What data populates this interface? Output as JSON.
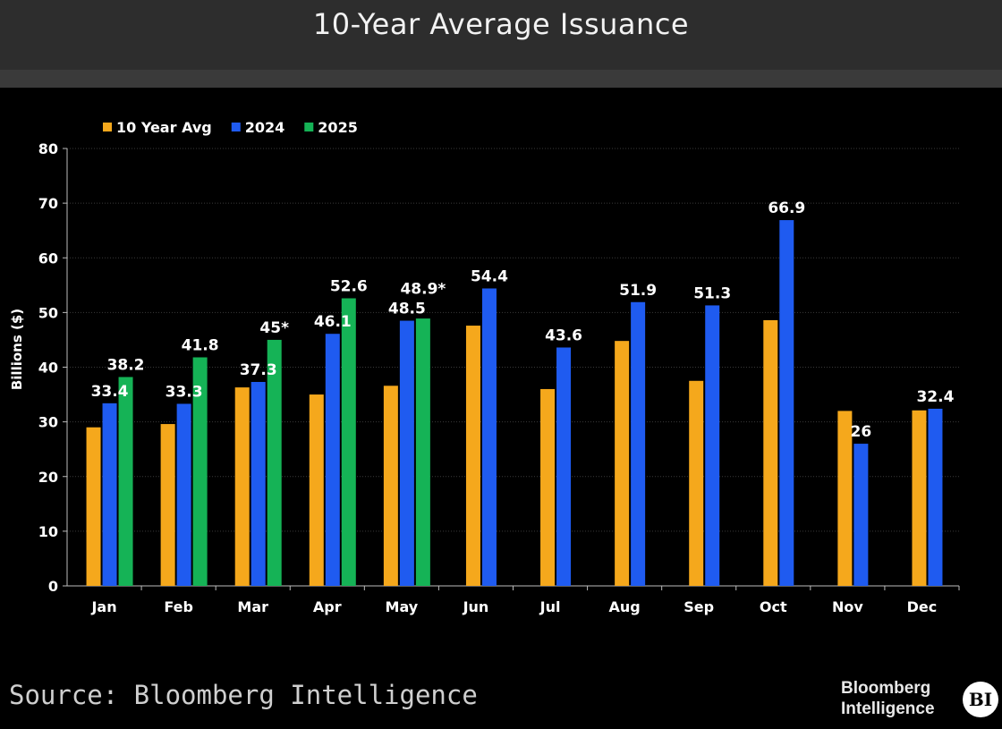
{
  "header": {
    "title": "10-Year Average Issuance"
  },
  "footer": {
    "source": "Source: Bloomberg Intelligence",
    "brand_line1": "Bloomberg",
    "brand_line2": "Intelligence",
    "badge": "BI"
  },
  "chart_data": {
    "type": "bar",
    "title": "10-Year Average Issuance",
    "xlabel": "",
    "ylabel": "Billions ($)",
    "ylim": [
      0,
      80
    ],
    "yticks": [
      0,
      10,
      20,
      30,
      40,
      50,
      60,
      70,
      80
    ],
    "grid": true,
    "legend_position": "top-left",
    "categories": [
      "Jan",
      "Feb",
      "Mar",
      "Apr",
      "May",
      "Jun",
      "Jul",
      "Aug",
      "Sep",
      "Oct",
      "Nov",
      "Dec"
    ],
    "series": [
      {
        "name": "10 Year Avg",
        "color": "#f5a81c",
        "values": [
          29,
          29.6,
          36.3,
          35,
          36.6,
          47.6,
          36,
          44.8,
          37.5,
          48.6,
          32,
          32.1
        ],
        "labels": [
          "",
          "",
          "",
          "",
          "",
          "",
          "",
          "",
          "",
          "",
          "",
          ""
        ]
      },
      {
        "name": "2024",
        "color": "#1f5bf0",
        "values": [
          33.4,
          33.3,
          37.3,
          46.1,
          48.5,
          54.4,
          43.6,
          51.9,
          51.3,
          66.9,
          26,
          32.4
        ],
        "labels": [
          "33.4",
          "33.3",
          "37.3",
          "46.1",
          "48.5",
          "54.4",
          "43.6",
          "51.9",
          "51.3",
          "66.9",
          "26",
          "32.4"
        ]
      },
      {
        "name": "2025",
        "color": "#15b356",
        "values": [
          38.2,
          41.8,
          45,
          52.6,
          48.9,
          null,
          null,
          null,
          null,
          null,
          null,
          null
        ],
        "labels": [
          "38.2",
          "41.8",
          "45*",
          "52.6",
          "48.9*",
          "",
          "",
          "",
          "",
          "",
          "",
          ""
        ]
      }
    ]
  }
}
